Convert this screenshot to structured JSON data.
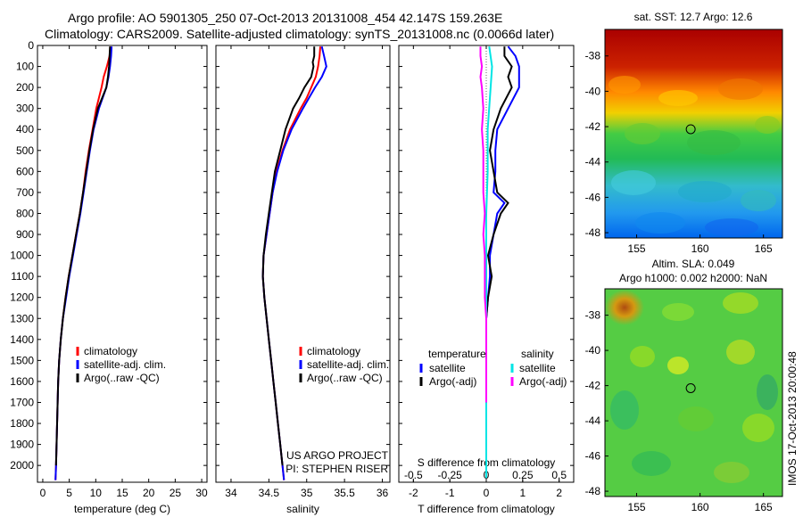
{
  "header": {
    "title_line1": "Argo profile: AO 5901305_250 07-Oct-2013 20131008_454 42.147S 159.263E",
    "title_line2": "Climatology: CARS2009. Satellite-adjusted climatology: synTS_20131008.nc (0.0066d later)"
  },
  "chart_data": [
    {
      "type": "line",
      "name": "temperature-panel",
      "xlabel": "temperature (deg C)",
      "ylim": [
        2080,
        0
      ],
      "xlim": [
        -1,
        31
      ],
      "xticks": [
        0,
        5,
        10,
        15,
        20,
        25,
        30
      ],
      "yticks": [
        0,
        100,
        200,
        300,
        400,
        500,
        600,
        700,
        800,
        900,
        1000,
        1100,
        1200,
        1300,
        1400,
        1500,
        1600,
        1700,
        1800,
        1900,
        2000
      ],
      "legend": [
        "climatology",
        "satellite-adj. clim.",
        "Argo(..raw -QC)"
      ],
      "legend_position": "lower-right",
      "series": [
        {
          "name": "climatology",
          "color": "#ff0000",
          "depth": [
            5,
            50,
            100,
            150,
            200,
            300,
            400,
            500,
            600,
            700,
            800,
            900,
            1000,
            1100,
            1200,
            1300,
            1400,
            1500,
            1600,
            1700,
            1800,
            1900,
            2000,
            2070
          ],
          "values": [
            12.8,
            12.6,
            12.1,
            11.5,
            11.1,
            10.1,
            9.4,
            8.7,
            8.1,
            7.6,
            7.0,
            6.3,
            5.6,
            4.9,
            4.3,
            3.8,
            3.4,
            3.1,
            2.9,
            2.8,
            2.7,
            2.6,
            2.5,
            2.4
          ]
        },
        {
          "name": "satellite-adj. clim.",
          "color": "#0000ff",
          "depth": [
            5,
            50,
            100,
            150,
            200,
            300,
            400,
            500,
            600,
            700,
            800,
            900,
            1000,
            1100,
            1200,
            1300,
            1400,
            1500,
            1600,
            1700,
            1800,
            1900,
            2000,
            2070
          ],
          "values": [
            13.0,
            12.9,
            12.7,
            12.4,
            12.0,
            10.6,
            9.6,
            8.9,
            8.3,
            7.7,
            7.1,
            6.4,
            5.7,
            5.0,
            4.4,
            3.8,
            3.4,
            3.1,
            2.9,
            2.8,
            2.7,
            2.6,
            2.5,
            2.4
          ]
        },
        {
          "name": "Argo(..raw -QC)",
          "color": "#000000",
          "depth": [
            5,
            50,
            100,
            150,
            200,
            300,
            400,
            500,
            600,
            700,
            800,
            900,
            1000,
            1100,
            1200,
            1300,
            1400,
            1500,
            1600,
            1700,
            1800,
            1900,
            2000
          ],
          "values": [
            12.7,
            12.6,
            12.5,
            12.3,
            12.0,
            10.4,
            9.5,
            8.8,
            8.2,
            7.6,
            7.0,
            6.3,
            5.6,
            4.9,
            4.3,
            3.8,
            3.4,
            3.1,
            2.9,
            2.8,
            2.7,
            2.6,
            2.5
          ]
        }
      ]
    },
    {
      "type": "line",
      "name": "salinity-panel",
      "xlabel": "salinity",
      "ylim": [
        2080,
        0
      ],
      "xlim": [
        33.8,
        36.1
      ],
      "xticks": [
        34,
        34.5,
        35,
        35.5,
        36
      ],
      "legend": [
        "climatology",
        "satellite-adj. clim.",
        "Argo(..raw -QC)"
      ],
      "legend_position": "lower-right",
      "annotations": [
        "US ARGO PROJECT",
        "PI: STEPHEN RISER"
      ],
      "series": [
        {
          "name": "climatology",
          "color": "#ff0000",
          "depth": [
            5,
            50,
            100,
            150,
            200,
            250,
            300,
            400,
            500,
            600,
            700,
            800,
            900,
            1000,
            1100,
            1200,
            1300,
            1400,
            1500,
            1600,
            1700,
            1800,
            1900,
            2000,
            2070
          ],
          "values": [
            35.18,
            35.17,
            35.15,
            35.12,
            35.06,
            35.0,
            34.92,
            34.78,
            34.68,
            34.6,
            34.55,
            34.51,
            34.47,
            34.43,
            34.42,
            34.44,
            34.47,
            34.5,
            34.53,
            34.56,
            34.59,
            34.62,
            34.65,
            34.68,
            34.7
          ]
        },
        {
          "name": "satellite-adj. clim.",
          "color": "#0000ff",
          "depth": [
            5,
            50,
            100,
            150,
            200,
            250,
            300,
            400,
            500,
            600,
            700,
            800,
            900,
            1000,
            1100,
            1200,
            1300,
            1400,
            1500,
            1600,
            1700,
            1800,
            1900,
            2000,
            2070
          ],
          "values": [
            35.2,
            35.23,
            35.26,
            35.2,
            35.11,
            35.03,
            34.95,
            34.8,
            34.69,
            34.61,
            34.55,
            34.51,
            34.47,
            34.43,
            34.42,
            34.44,
            34.47,
            34.5,
            34.53,
            34.56,
            34.59,
            34.62,
            34.65,
            34.68,
            34.7
          ]
        },
        {
          "name": "Argo(..raw -QC)",
          "color": "#000000",
          "depth": [
            5,
            50,
            80,
            100,
            150,
            200,
            250,
            300,
            400,
            500,
            600,
            700,
            800,
            900,
            1000,
            1100,
            1200,
            1300,
            1400,
            1500,
            1600,
            1700,
            1800,
            1900,
            2000
          ],
          "values": [
            35.1,
            35.1,
            35.08,
            35.09,
            35.06,
            34.97,
            34.9,
            34.82,
            34.72,
            34.65,
            34.58,
            34.54,
            34.5,
            34.46,
            34.43,
            34.42,
            34.44,
            34.47,
            34.5,
            34.53,
            34.56,
            34.59,
            34.62,
            34.65,
            34.68
          ]
        }
      ]
    },
    {
      "type": "line",
      "name": "difference-panel",
      "xlabel": "T difference from climatology",
      "xlabel2": "S difference from climatology",
      "ylim": [
        2080,
        0
      ],
      "xlim": [
        -2.4,
        2.4
      ],
      "xticks": [
        -2,
        -1,
        0,
        1,
        2
      ],
      "xtick_labels": [
        "-2",
        "-1",
        "0",
        "1",
        "2"
      ],
      "x2ticks": [
        -0.5,
        -0.25,
        0,
        0.25,
        0.5
      ],
      "x2tick_labels": [
        "-0.5",
        "-0.25",
        "0",
        "0.25",
        "0.5"
      ],
      "legend_temperature": {
        "heading": "temperature",
        "items": [
          "satellite",
          "Argo(-adj)"
        ]
      },
      "legend_salinity": {
        "heading": "salinity",
        "items": [
          "satellite",
          "Argo(-adj)"
        ]
      },
      "series": [
        {
          "name": "temperature satellite",
          "color": "#0000ff",
          "depth": [
            5,
            50,
            100,
            150,
            200,
            300,
            400,
            500,
            600,
            700,
            750,
            800,
            900,
            1000,
            1100,
            1200,
            1300,
            1400,
            1600,
            2000
          ],
          "values": [
            0.6,
            0.8,
            0.9,
            0.9,
            0.9,
            0.6,
            0.3,
            0.25,
            0.25,
            0.2,
            0.5,
            0.3,
            0.2,
            0.1,
            0.1,
            0.05,
            0.0,
            0.0,
            0.0,
            0.0
          ]
        },
        {
          "name": "temperature Argo(-adj)",
          "color": "#000000",
          "depth": [
            5,
            50,
            100,
            150,
            200,
            300,
            400,
            500,
            600,
            700,
            750,
            800,
            900,
            1000,
            1100,
            1200,
            1300,
            1400,
            1600,
            2000
          ],
          "values": [
            0.5,
            0.5,
            0.7,
            0.6,
            0.7,
            0.4,
            0.2,
            0.1,
            0.2,
            0.3,
            0.6,
            0.4,
            0.2,
            0.05,
            0.15,
            0.05,
            0.0,
            0.0,
            0.0,
            0.0
          ]
        },
        {
          "name": "salinity satellite",
          "color": "#00e5e5",
          "depth": [
            5,
            100,
            200,
            400,
            600,
            800,
            1000,
            1200,
            1500,
            2060
          ],
          "values": [
            0.02,
            0.04,
            0.03,
            0.01,
            0.01,
            0.0,
            0.0,
            0.0,
            0.0,
            0.0
          ]
        },
        {
          "name": "salinity Argo(-adj)",
          "color": "#ff00ff",
          "depth": [
            5,
            50,
            100,
            150,
            200,
            300,
            400,
            500,
            600,
            700,
            800,
            900,
            1000,
            1100,
            1200,
            1300,
            1400,
            1500,
            1700
          ],
          "values": [
            -0.04,
            -0.04,
            -0.03,
            -0.04,
            -0.03,
            -0.02,
            -0.03,
            -0.02,
            -0.02,
            -0.02,
            -0.01,
            -0.02,
            -0.01,
            -0.01,
            -0.01,
            0.0,
            0.0,
            0.0,
            0.0
          ]
        }
      ]
    },
    {
      "type": "heatmap",
      "name": "sst-map",
      "title": "sat. SST: 12.7 Argo: 12.6",
      "xlim": [
        152.5,
        166.5
      ],
      "ylim": [
        -48.3,
        -36.5
      ],
      "xticks": [
        155,
        160,
        165
      ],
      "yticks": [
        -38,
        -40,
        -42,
        -44,
        -46,
        -48
      ],
      "marker": {
        "lon": 159.263,
        "lat": -42.147
      }
    },
    {
      "type": "heatmap",
      "name": "sla-map",
      "title": "Altim. SLA: 0.049",
      "subtitle": "Argo h1000: 0.002 h2000: NaN",
      "xlim": [
        152.5,
        166.5
      ],
      "ylim": [
        -48.3,
        -36.5
      ],
      "xticks": [
        155,
        160,
        165
      ],
      "yticks": [
        -38,
        -40,
        -42,
        -44,
        -46,
        -48
      ],
      "marker": {
        "lon": 159.263,
        "lat": -42.147
      },
      "side_label": "IMOS 17-Oct-2013 20:00:48"
    }
  ]
}
